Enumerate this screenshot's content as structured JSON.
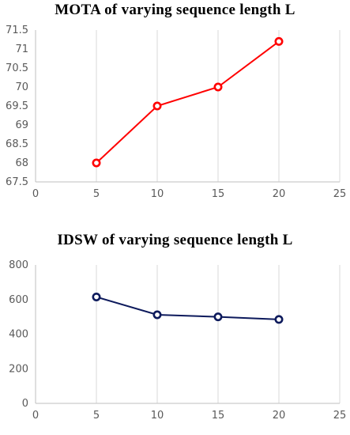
{
  "chart_data": [
    {
      "type": "line",
      "title": "MOTA of varying sequence length L",
      "xlabel": "",
      "ylabel": "",
      "x": [
        5,
        10,
        15,
        20
      ],
      "series": [
        {
          "values": [
            68,
            69.5,
            70,
            71.2
          ],
          "color": "#ff0000"
        }
      ],
      "xlim": [
        0,
        25
      ],
      "ylim": [
        67.5,
        71.5
      ],
      "xticks": [
        "0",
        "5",
        "10",
        "15",
        "20",
        "25"
      ],
      "yticks": [
        "67.5",
        "68",
        "68.5",
        "69",
        "69.5",
        "70",
        "70.5",
        "71",
        "71.5"
      ],
      "grid": "vertical"
    },
    {
      "type": "line",
      "title": "IDSW of varying sequence length L",
      "xlabel": "",
      "ylabel": "",
      "x": [
        5,
        10,
        15,
        20
      ],
      "series": [
        {
          "values": [
            615,
            512,
            500,
            485
          ],
          "color": "#0d1a5c"
        }
      ],
      "xlim": [
        0,
        25
      ],
      "ylim": [
        0,
        800
      ],
      "xticks": [
        "0",
        "5",
        "10",
        "15",
        "20",
        "25"
      ],
      "yticks": [
        "0",
        "200",
        "400",
        "600",
        "800"
      ],
      "grid": "vertical"
    }
  ]
}
